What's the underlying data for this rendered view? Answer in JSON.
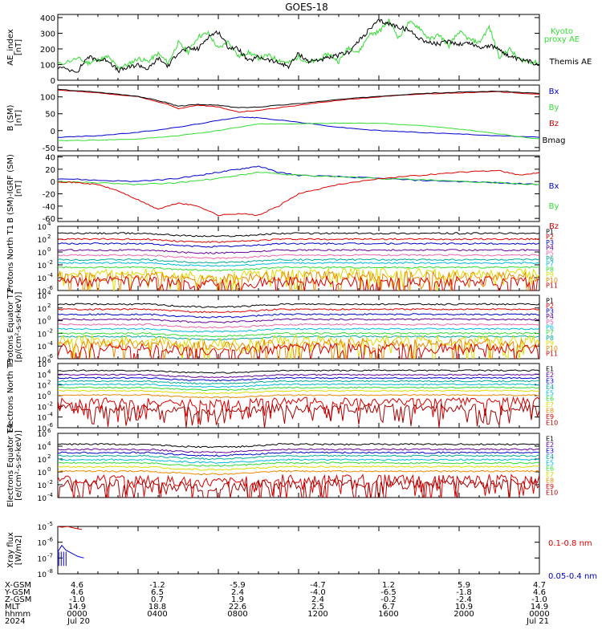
{
  "title": "GOES-18",
  "colors": {
    "black": "#000000",
    "green": "#33dd33",
    "red": "#dd0000",
    "blue": "#0000cc",
    "purple": "#660099",
    "cyan": "#00bbdd",
    "yellow": "#dddd00",
    "orange": "#ee8800",
    "pink": "#ee66aa",
    "teal": "#00aa99",
    "gray": "#888888"
  },
  "ephemeris": {
    "row_labels": [
      "X-GSM",
      "Y-GSM",
      "Z-GSM",
      "MLT",
      "hhmm",
      "2024"
    ],
    "columns": [
      {
        "values": [
          "4.6",
          "4.6",
          "-1.0",
          "14.9",
          "0000",
          "Jul 20"
        ]
      },
      {
        "values": [
          "-1.2",
          "6.5",
          "0.7",
          "18.8",
          "0400",
          ""
        ]
      },
      {
        "values": [
          "-5.9",
          "2.4",
          "1.9",
          "22.6",
          "0800",
          ""
        ]
      },
      {
        "values": [
          "-4.7",
          "-4.0",
          "2.4",
          "2.5",
          "1200",
          ""
        ]
      },
      {
        "values": [
          "1.2",
          "-6.5",
          "-0.2",
          "6.7",
          "1600",
          ""
        ]
      },
      {
        "values": [
          "5.9",
          "-1.8",
          "-2.4",
          "10.9",
          "2000",
          ""
        ]
      },
      {
        "values": [
          "4.7",
          "4.6",
          "-1.0",
          "14.9",
          "0000",
          "Jul 21"
        ]
      }
    ]
  },
  "chart_data": [
    {
      "type": "line",
      "id": "ae",
      "ylabel": "AE_index [nT]",
      "ylim": [
        0,
        420
      ],
      "yticks": [
        "0",
        "100",
        "200",
        "300",
        "400"
      ],
      "ytick_values": [
        0,
        100,
        200,
        300,
        400
      ],
      "x_hours": [
        0,
        24
      ],
      "series": [
        {
          "name": "Kyoto proxy AE",
          "color": "#33dd33",
          "label_lines": [
            "Kyoto",
            "proxy AE"
          ],
          "x": [
            0,
            1,
            1.5,
            2,
            2.5,
            3,
            3.5,
            4,
            4.5,
            5,
            5.5,
            6,
            6.5,
            7,
            7.5,
            8,
            8.5,
            9,
            9.5,
            10,
            10.5,
            11,
            11.5,
            12,
            12.5,
            13,
            13.5,
            14,
            14.5,
            15,
            15.5,
            16,
            16.5,
            17,
            17.5,
            18,
            18.5,
            19,
            19.5,
            20,
            20.5,
            21,
            21.5,
            22,
            22.5,
            23,
            23.5,
            24
          ],
          "y": [
            100,
            140,
            110,
            130,
            150,
            80,
            100,
            140,
            120,
            170,
            110,
            240,
            180,
            280,
            300,
            200,
            250,
            150,
            180,
            140,
            160,
            130,
            110,
            150,
            110,
            130,
            170,
            120,
            210,
            180,
            290,
            310,
            380,
            270,
            370,
            340,
            260,
            290,
            220,
            310,
            260,
            240,
            340,
            150,
            200,
            130,
            120,
            110
          ]
        },
        {
          "name": "Themis AE",
          "color": "#000000",
          "label_lines": [
            "Themis AE"
          ],
          "x": [
            0,
            1,
            1.5,
            2,
            2.5,
            3,
            3.5,
            4,
            4.5,
            5,
            5.5,
            6,
            6.5,
            7,
            7.5,
            8,
            8.5,
            9,
            9.5,
            10,
            10.5,
            11,
            11.5,
            12,
            12.5,
            13,
            13.5,
            14,
            14.5,
            15,
            15.5,
            16,
            16.5,
            17,
            17.5,
            18,
            18.5,
            19,
            19.5,
            20,
            20.5,
            21,
            21.5,
            22,
            22.5,
            23,
            23.5,
            24
          ],
          "y": [
            80,
            60,
            150,
            130,
            130,
            60,
            80,
            100,
            70,
            140,
            90,
            180,
            200,
            200,
            280,
            310,
            210,
            200,
            120,
            150,
            130,
            110,
            90,
            170,
            120,
            130,
            140,
            160,
            180,
            250,
            320,
            380,
            360,
            340,
            320,
            270,
            240,
            230,
            250,
            230,
            240,
            210,
            220,
            200,
            150,
            130,
            120,
            100
          ]
        }
      ]
    },
    {
      "type": "line",
      "id": "bsm",
      "ylabel": "B (SM) [nT]",
      "ylim": [
        -60,
        135
      ],
      "yticks": [
        "-50",
        "0",
        "50",
        "100"
      ],
      "ytick_values": [
        -50,
        0,
        50,
        100
      ],
      "x_hours": [
        0,
        24
      ],
      "series": [
        {
          "name": "Bx",
          "color": "#0000cc",
          "x": [
            0,
            2,
            4,
            6,
            8,
            9,
            10,
            12,
            14,
            16,
            18,
            20,
            22,
            24
          ],
          "y": [
            -20,
            -15,
            -5,
            10,
            30,
            40,
            38,
            25,
            10,
            0,
            -5,
            -10,
            -15,
            -20
          ]
        },
        {
          "name": "By",
          "color": "#33dd33",
          "x": [
            0,
            2,
            4,
            6,
            8,
            9,
            10,
            12,
            14,
            16,
            18,
            20,
            22,
            24
          ],
          "y": [
            -30,
            -28,
            -25,
            -15,
            0,
            10,
            20,
            20,
            22,
            22,
            15,
            5,
            -10,
            -25
          ]
        },
        {
          "name": "Bz",
          "color": "#dd0000",
          "x": [
            0,
            2,
            4,
            5.5,
            6,
            7,
            8,
            9,
            10,
            12,
            14,
            16,
            18,
            20,
            22,
            24
          ],
          "y": [
            120,
            112,
            100,
            78,
            65,
            75,
            70,
            55,
            60,
            75,
            90,
            100,
            108,
            112,
            115,
            108
          ]
        },
        {
          "name": "Bmag",
          "color": "#000000",
          "x": [
            0,
            2,
            4,
            5.5,
            6,
            7,
            8,
            9,
            10,
            12,
            14,
            16,
            18,
            20,
            22,
            24
          ],
          "y": [
            122,
            114,
            102,
            82,
            72,
            78,
            75,
            68,
            70,
            80,
            92,
            102,
            110,
            114,
            117,
            110
          ]
        }
      ]
    },
    {
      "type": "line",
      "id": "bdiff",
      "ylabel": "B (SM)-IGRF (SM) [nT]",
      "ylim": [
        -65,
        42
      ],
      "yticks": [
        "-60",
        "-40",
        "-20",
        "0",
        "20",
        "40"
      ],
      "ytick_values": [
        -60,
        -40,
        -20,
        0,
        20,
        40
      ],
      "x_hours": [
        0,
        24
      ],
      "series": [
        {
          "name": "Bx",
          "color": "#0000cc",
          "x": [
            0,
            2,
            4,
            6,
            7,
            8,
            9,
            10,
            11,
            12,
            14,
            16,
            18,
            20,
            22,
            24
          ],
          "y": [
            5,
            2,
            0,
            5,
            10,
            15,
            20,
            25,
            15,
            10,
            8,
            5,
            2,
            0,
            -2,
            -5
          ]
        },
        {
          "name": "By",
          "color": "#33dd33",
          "x": [
            0,
            2,
            4,
            6,
            8,
            9,
            10,
            12,
            14,
            16,
            18,
            20,
            22,
            24
          ],
          "y": [
            0,
            -2,
            -5,
            -2,
            5,
            10,
            15,
            10,
            8,
            5,
            3,
            0,
            -2,
            -5
          ]
        },
        {
          "name": "Bz",
          "color": "#dd0000",
          "x": [
            0,
            1,
            2,
            3,
            4,
            5,
            6,
            7,
            8,
            9,
            10,
            11,
            12,
            14,
            16,
            18,
            20,
            22,
            23,
            24
          ],
          "y": [
            0,
            -2,
            -5,
            -15,
            -30,
            -45,
            -35,
            -40,
            -55,
            -52,
            -55,
            -40,
            -20,
            -5,
            5,
            10,
            15,
            18,
            10,
            15
          ]
        }
      ]
    },
    {
      "type": "line",
      "id": "protons_t1",
      "log": true,
      "ylabel": "Protons North T1",
      "ylim_exp": [
        -6,
        4
      ],
      "ytick_exps": [
        4,
        2,
        0,
        -2,
        -4,
        -6
      ],
      "channels": [
        {
          "name": "P1",
          "color": "#000000",
          "level": 2.9
        },
        {
          "name": "P2",
          "color": "#dd0000",
          "level": 2.0
        },
        {
          "name": "P3",
          "color": "#0000cc",
          "level": 1.3
        },
        {
          "name": "P4",
          "color": "#660099",
          "level": 0.3
        },
        {
          "name": "P5",
          "color": "#ee66aa",
          "level": -0.5
        },
        {
          "name": "P6",
          "color": "#00aa99",
          "level": -1.2
        },
        {
          "name": "P7",
          "color": "#00bbdd",
          "level": -1.7
        },
        {
          "name": "P8",
          "color": "#33dd33",
          "level": -2.4
        },
        {
          "name": "P9",
          "color": "#dddd00",
          "level": -3.3
        },
        {
          "name": "P10",
          "color": "#ee8800",
          "level": -3.8
        },
        {
          "name": "P11",
          "color": "#dd0000",
          "level": -4.6
        }
      ]
    },
    {
      "type": "line",
      "id": "protons_t2",
      "log": true,
      "ylabel": "Protons Equator T2 [p/(cm²-s-sr-keV)]",
      "ylim_exp": [
        -6,
        4
      ],
      "ytick_exps": [
        4,
        2,
        0,
        -2,
        -4,
        -6
      ],
      "channels": [
        {
          "name": "P1",
          "color": "#000000",
          "level": 2.6
        },
        {
          "name": "P2",
          "color": "#dd0000",
          "level": 1.8
        },
        {
          "name": "P3",
          "color": "#0000cc",
          "level": 1.0
        },
        {
          "name": "P4",
          "color": "#660099",
          "level": 0.2
        },
        {
          "name": "P5",
          "color": "#ee66aa",
          "level": -0.6
        },
        {
          "name": "P6",
          "color": "#00bbdd",
          "level": -1.3
        },
        {
          "name": "P7",
          "color": "#33dd33",
          "level": -2.0
        },
        {
          "name": "P8",
          "color": "#00aa99",
          "level": -2.5
        },
        {
          "name": "P9",
          "color": "#dddd00",
          "level": -3.1
        },
        {
          "name": "P10",
          "color": "#ee8800",
          "level": -3.6
        },
        {
          "name": "P11",
          "color": "#dd0000",
          "level": -4.4
        }
      ]
    },
    {
      "type": "line",
      "id": "electrons_t3",
      "log": true,
      "ylabel": "Electrons North T3",
      "ylim_exp": [
        -6,
        6
      ],
      "ytick_exps": [
        6,
        4,
        2,
        0,
        -2,
        -4,
        -6
      ],
      "channels": [
        {
          "name": "E1",
          "color": "#000000",
          "level": 4.7
        },
        {
          "name": "E2",
          "color": "#660099",
          "level": 3.9
        },
        {
          "name": "E3",
          "color": "#0000cc",
          "level": 3.3
        },
        {
          "name": "E4",
          "color": "#00aa99",
          "level": 2.7
        },
        {
          "name": "E5",
          "color": "#00bbdd",
          "level": 2.1
        },
        {
          "name": "E6",
          "color": "#33dd33",
          "level": 1.5
        },
        {
          "name": "E7",
          "color": "#dddd00",
          "level": 0.9
        },
        {
          "name": "E8",
          "color": "#ee8800",
          "level": 0.1
        },
        {
          "name": "E9",
          "color": "#dd0000",
          "level": -1.1
        },
        {
          "name": "E10",
          "color": "#aa0000",
          "level": -2.4
        }
      ]
    },
    {
      "type": "line",
      "id": "electrons_t4",
      "log": true,
      "ylabel": "Electrons Equator T4 [e/(cm²-s-sr-keV)]",
      "ylim_exp": [
        -4,
        6
      ],
      "ytick_exps": [
        6,
        4,
        2,
        0,
        -2,
        -4
      ],
      "channels": [
        {
          "name": "E1",
          "color": "#000000",
          "level": 4.3
        },
        {
          "name": "E2",
          "color": "#660099",
          "level": 3.5
        },
        {
          "name": "E3",
          "color": "#0000cc",
          "level": 3.0
        },
        {
          "name": "E4",
          "color": "#00aa99",
          "level": 2.5
        },
        {
          "name": "E5",
          "color": "#00bbdd",
          "level": 1.9
        },
        {
          "name": "E6",
          "color": "#33dd33",
          "level": 1.4
        },
        {
          "name": "E7",
          "color": "#dddd00",
          "level": 0.8
        },
        {
          "name": "E8",
          "color": "#ee8800",
          "level": 0.1
        },
        {
          "name": "E9",
          "color": "#dd0000",
          "level": -1.2
        },
        {
          "name": "E10",
          "color": "#aa0000",
          "level": -1.9
        }
      ]
    },
    {
      "type": "line",
      "id": "xray",
      "log": true,
      "ylabel": "Xray flux [W/m2]",
      "ylim_exp": [
        -8,
        -5
      ],
      "ytick_exps": [
        -5,
        -6,
        -7,
        -8
      ],
      "series": [
        {
          "name": "0.1-0.8 nm",
          "color": "#dd0000",
          "x": [
            0,
            0.2,
            0.5,
            0.8,
            1.2
          ],
          "y_exp": [
            -5.0,
            -5.05,
            -5.0,
            -5.1,
            -5.2
          ]
        },
        {
          "name": "0.05-0.4 nm",
          "color": "#0000cc",
          "x": [
            0,
            0.2,
            0.4,
            0.7,
            1.0,
            1.3
          ],
          "y_exp": [
            -6.6,
            -6.2,
            -6.5,
            -6.7,
            -6.9,
            -7.0
          ]
        }
      ]
    }
  ]
}
